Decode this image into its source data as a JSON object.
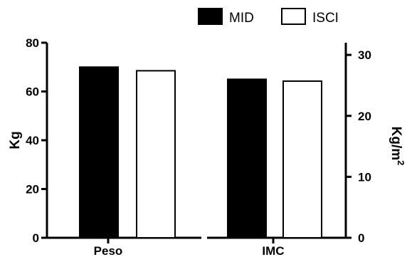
{
  "colors": {
    "mid": "#000000",
    "isci": "#ffffff",
    "axis": "#000000"
  },
  "chart_data": {
    "type": "bar",
    "categories": [
      "Peso",
      "IMC"
    ],
    "series": [
      {
        "name": "MID",
        "values": [
          70,
          26
        ],
        "color": "#000000"
      },
      {
        "name": "ISCI",
        "values": [
          68.5,
          25.7
        ],
        "color": "#ffffff"
      }
    ],
    "left_axis": {
      "label": "Kg",
      "range": [
        0,
        80
      ],
      "ticks": [
        0,
        20,
        40,
        60,
        80
      ],
      "applies_to": "Peso"
    },
    "right_axis": {
      "label": "Kg/m",
      "label_superscript": "2",
      "range": [
        0,
        32
      ],
      "ticks": [
        0,
        10,
        20,
        30
      ],
      "applies_to": "IMC"
    },
    "legend": {
      "position": "top-right"
    },
    "grid": false
  }
}
